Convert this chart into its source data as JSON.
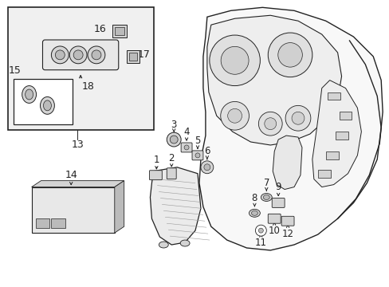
{
  "background_color": "#ffffff",
  "fig_width": 4.89,
  "fig_height": 3.6,
  "dpi": 100,
  "line_color": "#222222",
  "gray_fill": "#e8e8e8",
  "light_gray": "#d4d4d4",
  "mid_gray": "#bbbbbb"
}
